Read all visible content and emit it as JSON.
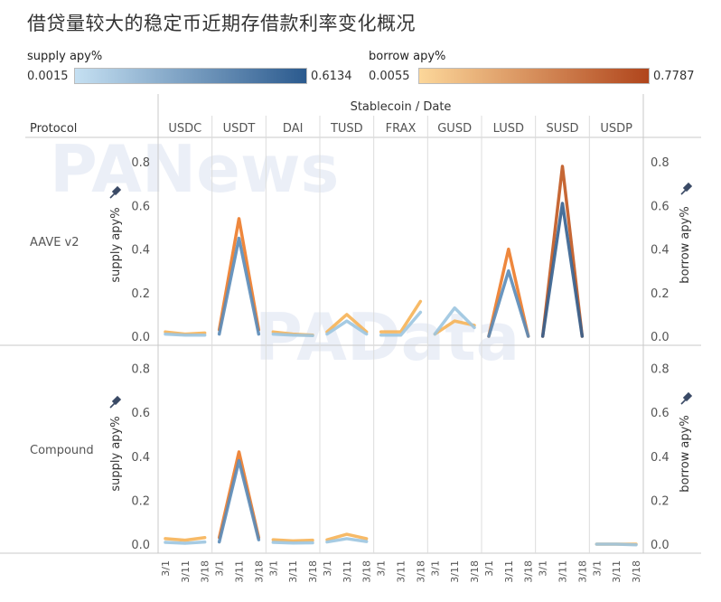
{
  "title": "借贷量较大的稳定币近期存借款利率变化概况",
  "legend": {
    "supply": {
      "label": "supply apy%",
      "min": "0.0015",
      "max": "0.6134",
      "color_low": "#c5e0f2",
      "color_high": "#2b5a8e"
    },
    "borrow": {
      "label": "borrow apy%",
      "min": "0.0055",
      "max": "0.7787",
      "color_low": "#fcd79a",
      "color_high": "#b0451c"
    }
  },
  "header": {
    "column_group": "Stablecoin / Date",
    "row_header": "Protocol"
  },
  "watermarks": [
    "PANews",
    "PAData"
  ],
  "chart_data": {
    "type": "line",
    "stablecoins": [
      "USDC",
      "USDT",
      "DAI",
      "TUSD",
      "FRAX",
      "GUSD",
      "LUSD",
      "SUSD",
      "USDP"
    ],
    "dates": [
      "3/1",
      "3/11",
      "3/18"
    ],
    "protocols": [
      "AAVE v2",
      "Compound"
    ],
    "ylabel_left": "supply apy%",
    "ylabel_right": "borrow apy%",
    "ylim": [
      0,
      0.9
    ],
    "yticks": [
      "0.0",
      "0.2",
      "0.4",
      "0.6",
      "0.8"
    ],
    "series": {
      "AAVE v2": {
        "supply": {
          "USDC": [
            0.01,
            0.005,
            0.005
          ],
          "USDT": [
            0.01,
            0.45,
            0.01
          ],
          "DAI": [
            0.01,
            0.005,
            0.003
          ],
          "TUSD": [
            0.01,
            0.07,
            0.01
          ],
          "FRAX": [
            0.005,
            0.005,
            0.11
          ],
          "GUSD": [
            0.01,
            0.13,
            0.04
          ],
          "LUSD": [
            0.0,
            0.3,
            0.0
          ],
          "SUSD": [
            0.0,
            0.61,
            0.0
          ],
          "USDP": null
        },
        "borrow": {
          "USDC": [
            0.02,
            0.01,
            0.015
          ],
          "USDT": [
            0.03,
            0.54,
            0.03
          ],
          "DAI": [
            0.02,
            0.01,
            0.005
          ],
          "TUSD": [
            0.02,
            0.1,
            0.02
          ],
          "FRAX": [
            0.02,
            0.02,
            0.16
          ],
          "GUSD": [
            0.01,
            0.07,
            0.05
          ],
          "LUSD": [
            0.0,
            0.4,
            0.0
          ],
          "SUSD": [
            0.0,
            0.78,
            0.0
          ],
          "USDP": null
        }
      },
      "Compound": {
        "supply": {
          "USDC": [
            0.008,
            0.004,
            0.01
          ],
          "USDT": [
            0.01,
            0.38,
            0.02
          ],
          "DAI": [
            0.008,
            0.005,
            0.006
          ],
          "TUSD": [
            0.01,
            0.025,
            0.012
          ],
          "FRAX": null,
          "GUSD": null,
          "LUSD": null,
          "SUSD": null,
          "USDP": [
            0.0,
            0.0,
            -0.003
          ]
        },
        "borrow": {
          "USDC": [
            0.025,
            0.018,
            0.03
          ],
          "USDT": [
            0.03,
            0.42,
            0.03
          ],
          "DAI": [
            0.02,
            0.015,
            0.018
          ],
          "TUSD": [
            0.02,
            0.045,
            0.025
          ],
          "FRAX": null,
          "GUSD": null,
          "LUSD": null,
          "SUSD": null,
          "USDP": [
            0.0,
            0.0,
            0.0
          ]
        }
      }
    }
  }
}
